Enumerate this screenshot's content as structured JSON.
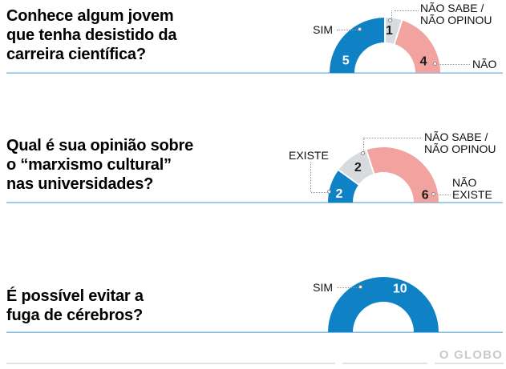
{
  "page": {
    "brand": "O GLOBO"
  },
  "sections": [
    {
      "title_lines": [
        "Conhece algum jovem",
        "que tenha desistido da",
        "carreira científica?"
      ],
      "callouts": [
        {
          "lines": [
            "SIM"
          ]
        },
        {
          "lines": [
            "NÃO SABE /",
            "NÃO OPINOU"
          ]
        },
        {
          "lines": [
            "NÃO"
          ]
        }
      ]
    },
    {
      "title_lines": [
        "Qual é sua opinião sobre",
        "o “marxismo cultural”",
        "nas universidades?"
      ],
      "callouts": [
        {
          "lines": [
            "EXISTE"
          ]
        },
        {
          "lines": [
            "NÃO SABE /",
            "NÃO OPINOU"
          ]
        },
        {
          "lines": [
            "NÃO",
            "EXISTE"
          ]
        }
      ]
    },
    {
      "title_lines": [
        "É possível evitar a",
        "fuga de cérebros?"
      ],
      "callouts": [
        {
          "lines": [
            "SIM"
          ]
        }
      ]
    }
  ],
  "chart_data": [
    {
      "type": "pie",
      "variant": "half-donut",
      "title": "Conhece algum jovem que tenha desistido da carreira científica?",
      "total": 10,
      "legend_position": "callouts",
      "segments": [
        {
          "label": "SIM",
          "value": 5,
          "color": "#0f82c6",
          "value_color": "#ffffff",
          "label_angle_deg": 163,
          "label_radius": 51
        },
        {
          "label": "NÃO SABE / NÃO OPINOU",
          "value": 1,
          "color": "#d8dbde",
          "value_color": "#1a1a1a",
          "label_angle_deg": 84,
          "label_radius": 53
        },
        {
          "label": "NÃO",
          "value": 4,
          "color": "#f2a3a0",
          "value_color": "#1a1a1a",
          "label_angle_deg": 16,
          "label_radius": 50
        }
      ]
    },
    {
      "type": "pie",
      "variant": "half-donut",
      "title": "Qual é sua opinião sobre o “marxismo cultural” nas universidades?",
      "total": 10,
      "legend_position": "callouts",
      "segments": [
        {
          "label": "EXISTE",
          "value": 2,
          "color": "#0f82c6",
          "value_color": "#ffffff",
          "label_angle_deg": 169,
          "label_radius": 56
        },
        {
          "label": "NÃO SABE / NÃO OPINOU",
          "value": 2,
          "color": "#d8dbde",
          "value_color": "#1a1a1a",
          "label_angle_deg": 126,
          "label_radius": 54
        },
        {
          "label": "NÃO EXISTE",
          "value": 6,
          "color": "#f2a3a0",
          "value_color": "#1a1a1a",
          "label_angle_deg": 10,
          "label_radius": 53
        }
      ]
    },
    {
      "type": "pie",
      "variant": "half-donut",
      "title": "É possível evitar a fuga de cérebros?",
      "total": 10,
      "legend_position": "callouts",
      "segments": [
        {
          "label": "SIM",
          "value": 10,
          "color": "#0f82c6",
          "value_color": "#ffffff",
          "label_angle_deg": 69,
          "label_radius": 58
        }
      ]
    }
  ]
}
